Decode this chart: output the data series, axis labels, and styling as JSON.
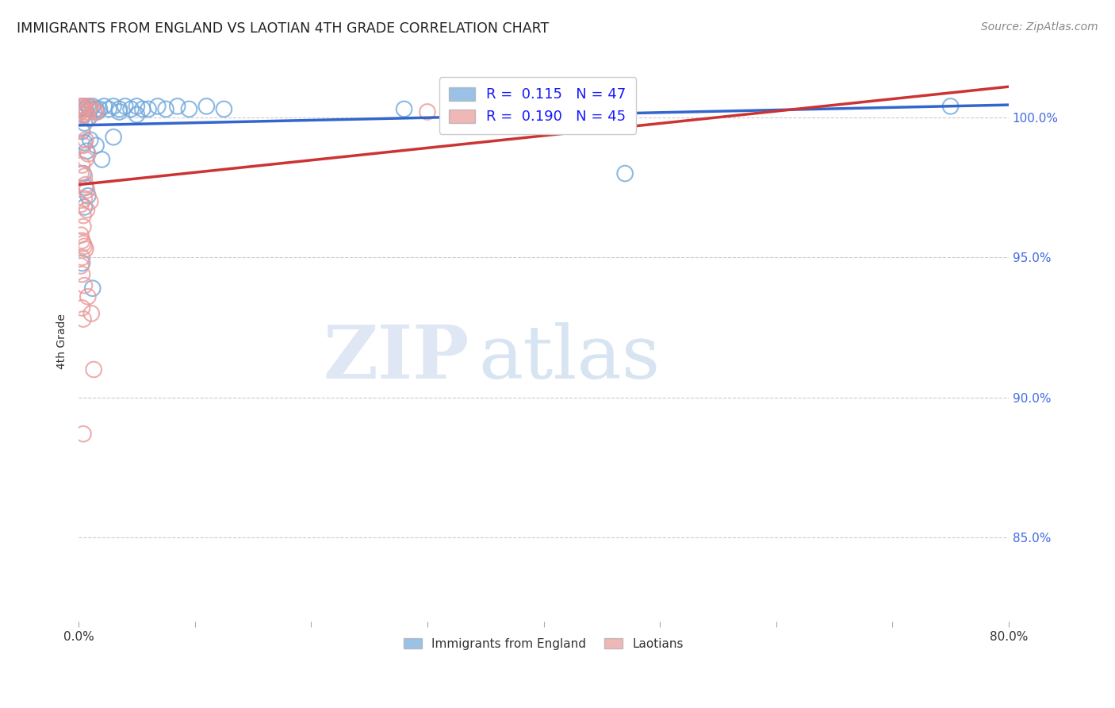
{
  "title": "IMMIGRANTS FROM ENGLAND VS LAOTIAN 4TH GRADE CORRELATION CHART",
  "source": "Source: ZipAtlas.com",
  "ylabel": "4th Grade",
  "ytick_vals": [
    85.0,
    90.0,
    95.0,
    100.0
  ],
  "xlim": [
    0.0,
    80.0
  ],
  "ylim": [
    82.0,
    102.0
  ],
  "legend1_label": "Immigrants from England",
  "legend2_label": "Laotians",
  "R_blue": 0.115,
  "N_blue": 47,
  "R_pink": 0.19,
  "N_pink": 45,
  "blue_color": "#6fa8dc",
  "pink_color": "#ea9999",
  "trendline_blue": "#3366cc",
  "trendline_pink": "#cc3333",
  "blue_scatter": [
    [
      0.2,
      100.3
    ],
    [
      0.4,
      100.4
    ],
    [
      0.6,
      100.3
    ],
    [
      0.8,
      100.4
    ],
    [
      1.0,
      100.3
    ],
    [
      1.2,
      100.4
    ],
    [
      1.5,
      100.3
    ],
    [
      1.8,
      100.3
    ],
    [
      2.2,
      100.4
    ],
    [
      2.6,
      100.3
    ],
    [
      3.0,
      100.4
    ],
    [
      3.5,
      100.3
    ],
    [
      4.0,
      100.4
    ],
    [
      4.5,
      100.3
    ],
    [
      5.0,
      100.4
    ],
    [
      5.5,
      100.3
    ],
    [
      6.0,
      100.3
    ],
    [
      6.8,
      100.4
    ],
    [
      7.5,
      100.3
    ],
    [
      8.5,
      100.4
    ],
    [
      9.5,
      100.3
    ],
    [
      11.0,
      100.4
    ],
    [
      12.5,
      100.3
    ],
    [
      0.3,
      99.5
    ],
    [
      0.5,
      99.1
    ],
    [
      0.7,
      98.8
    ],
    [
      1.0,
      99.2
    ],
    [
      1.5,
      99.0
    ],
    [
      2.0,
      98.5
    ],
    [
      3.0,
      99.3
    ],
    [
      0.4,
      98.0
    ],
    [
      0.6,
      97.5
    ],
    [
      0.8,
      97.2
    ],
    [
      0.5,
      96.8
    ],
    [
      0.3,
      94.8
    ],
    [
      1.2,
      93.9
    ],
    [
      0.5,
      99.8
    ],
    [
      0.3,
      100.0
    ],
    [
      0.4,
      100.1
    ],
    [
      28.0,
      100.3
    ],
    [
      35.0,
      100.4
    ],
    [
      47.0,
      98.0
    ],
    [
      75.0,
      100.4
    ],
    [
      3.5,
      100.2
    ],
    [
      5.0,
      100.1
    ],
    [
      0.9,
      100.0
    ],
    [
      1.6,
      100.2
    ]
  ],
  "pink_scatter": [
    [
      0.2,
      100.4
    ],
    [
      0.4,
      100.3
    ],
    [
      0.5,
      100.4
    ],
    [
      0.7,
      100.2
    ],
    [
      0.9,
      100.3
    ],
    [
      1.0,
      100.4
    ],
    [
      1.3,
      100.2
    ],
    [
      0.3,
      99.6
    ],
    [
      0.6,
      99.2
    ],
    [
      0.8,
      98.7
    ],
    [
      0.3,
      98.3
    ],
    [
      0.5,
      97.9
    ],
    [
      0.7,
      97.4
    ],
    [
      1.0,
      97.0
    ],
    [
      0.2,
      96.9
    ],
    [
      0.4,
      96.5
    ],
    [
      0.2,
      95.8
    ],
    [
      0.4,
      95.5
    ],
    [
      0.6,
      95.3
    ],
    [
      0.3,
      95.0
    ],
    [
      0.2,
      94.7
    ],
    [
      0.3,
      94.4
    ],
    [
      0.5,
      94.0
    ],
    [
      0.8,
      93.6
    ],
    [
      0.3,
      93.2
    ],
    [
      0.4,
      92.8
    ],
    [
      1.3,
      91.0
    ],
    [
      0.4,
      88.7
    ],
    [
      0.2,
      100.2
    ],
    [
      0.3,
      100.3
    ],
    [
      30.0,
      100.2
    ],
    [
      33.0,
      100.4
    ],
    [
      0.5,
      97.1
    ],
    [
      0.7,
      96.7
    ],
    [
      0.3,
      95.6
    ],
    [
      0.5,
      95.4
    ],
    [
      0.2,
      98.0
    ],
    [
      0.6,
      97.6
    ],
    [
      0.4,
      96.1
    ],
    [
      1.1,
      93.0
    ],
    [
      0.3,
      100.1
    ],
    [
      0.8,
      100.0
    ],
    [
      1.5,
      100.2
    ],
    [
      0.4,
      99.0
    ],
    [
      0.6,
      98.5
    ]
  ],
  "watermark_zip": "ZIP",
  "watermark_atlas": "atlas",
  "background_color": "#ffffff",
  "grid_color": "#cccccc",
  "blue_trend_x": [
    0.0,
    80.0
  ],
  "blue_trend_y": [
    99.72,
    100.45
  ],
  "pink_trend_x": [
    0.0,
    80.0
  ],
  "pink_trend_y": [
    97.6,
    101.1
  ]
}
